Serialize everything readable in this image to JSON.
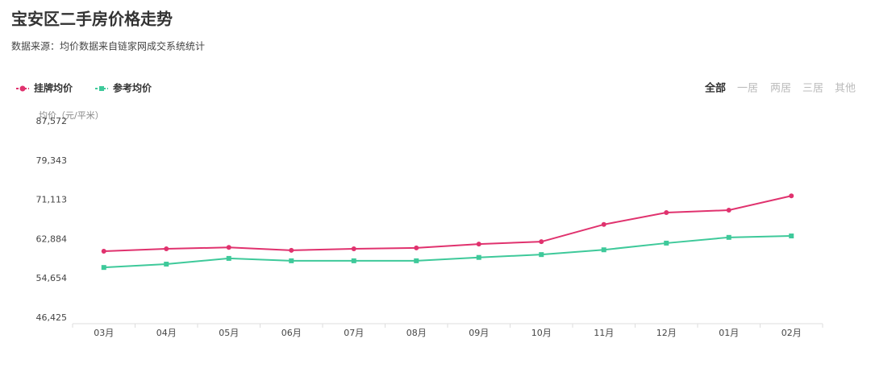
{
  "header": {
    "title": "宝安区二手房价格走势",
    "subtitle": "数据来源：均价数据来自链家网成交系统统计"
  },
  "tabs": {
    "items": [
      "全部",
      "一居",
      "两居",
      "三居",
      "其他"
    ],
    "active": 0
  },
  "chart_data": {
    "type": "line",
    "y_label": "均价（元/平米）",
    "categories": [
      "03月",
      "04月",
      "05月",
      "06月",
      "07月",
      "08月",
      "09月",
      "10月",
      "11月",
      "12月",
      "01月",
      "02月"
    ],
    "series": [
      {
        "name": "挂牌均价",
        "color": "#e0326e",
        "marker": "circle",
        "values": [
          61600,
          62100,
          62400,
          61800,
          62100,
          62300,
          63100,
          63600,
          67200,
          69700,
          70200,
          73200
        ]
      },
      {
        "name": "参考均价",
        "color": "#3ec99a",
        "marker": "square",
        "values": [
          58200,
          58900,
          60100,
          59600,
          59600,
          59600,
          60300,
          60900,
          61900,
          63300,
          64500,
          64800
        ]
      }
    ],
    "ylim": [
      46425,
      87572
    ],
    "yticks": [
      {
        "value": 46425,
        "label": "46,425"
      },
      {
        "value": 54654,
        "label": "54,654"
      },
      {
        "value": 62884,
        "label": "62,884"
      },
      {
        "value": 71113,
        "label": "71,113"
      },
      {
        "value": 79343,
        "label": "79,343"
      },
      {
        "value": 87572,
        "label": "87,572"
      }
    ],
    "grid": false
  }
}
